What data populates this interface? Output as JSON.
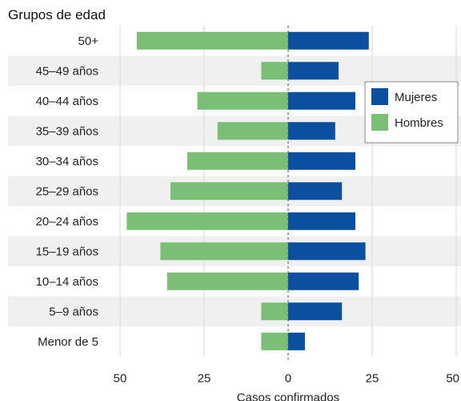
{
  "chart_data": {
    "type": "bar",
    "orientation": "horizontal-diverging",
    "title": "Grupos de edad",
    "xlabel": "Casos confirmados",
    "ylabel": "",
    "xlim": [
      -50,
      50
    ],
    "x_ticks": [
      -50,
      -25,
      0,
      25,
      50
    ],
    "x_tick_labels": [
      "50",
      "25",
      "0",
      "25",
      "50"
    ],
    "categories": [
      "50+",
      "45–49 años",
      "40–44 años",
      "35–39 años",
      "30–34 años",
      "25–29 años",
      "20–24 años",
      "15–19 años",
      "10–14 años",
      "5–9 años",
      "Menor de 5"
    ],
    "series": [
      {
        "name": "Mujeres",
        "color": "#0b4fa0",
        "direction": "right",
        "values": [
          24,
          15,
          20,
          14,
          20,
          16,
          20,
          23,
          21,
          16,
          5
        ]
      },
      {
        "name": "Hombres",
        "color": "#7bbf77",
        "direction": "left",
        "values": [
          45,
          8,
          27,
          21,
          30,
          35,
          48,
          38,
          36,
          8,
          8
        ]
      }
    ],
    "legend": {
      "position": "right",
      "items": [
        "Mujeres",
        "Hombres"
      ]
    },
    "grid": true,
    "alternating_row_band_color": "#f0f0f0"
  }
}
